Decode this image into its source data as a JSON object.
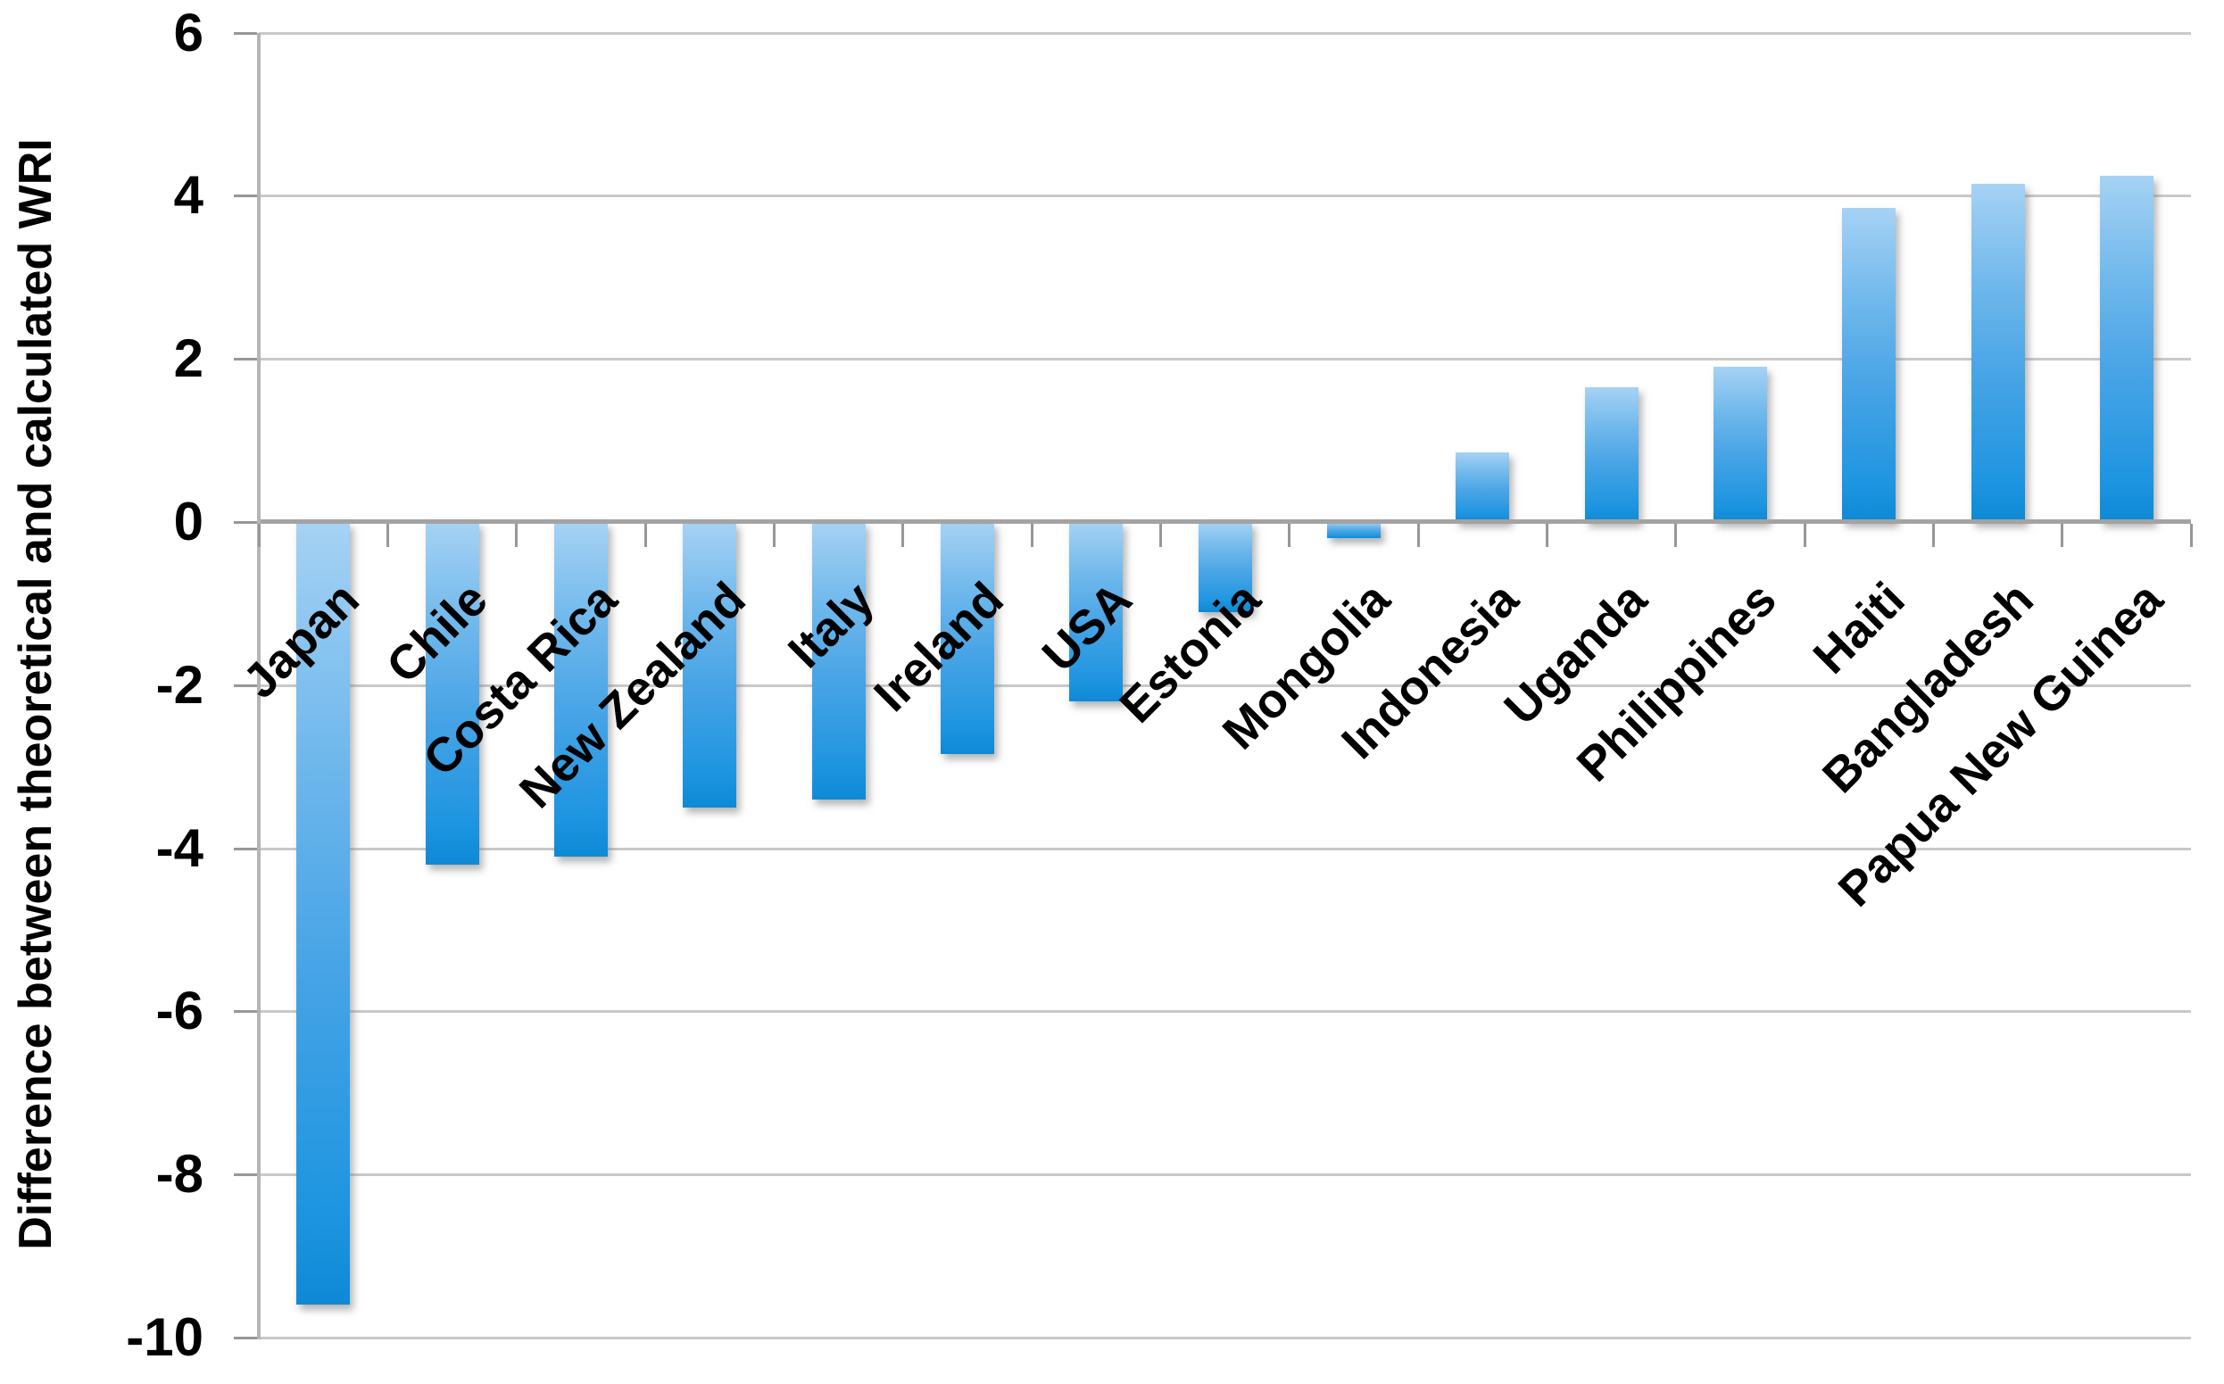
{
  "chart_data": {
    "type": "bar",
    "title": "",
    "xlabel": "",
    "ylabel": "Difference between theoretical and calculated WRI",
    "categories": [
      "Japan",
      "Chile",
      "Costa Rica",
      "New Zealand",
      "Italy",
      "Ireland",
      "USA",
      "Estonia",
      "Mongolia",
      "Indonesia",
      "Uganda",
      "Philippines",
      "Haiti",
      "Bangladesh",
      "Papua New Guinea"
    ],
    "values": [
      -9.6,
      -4.2,
      -4.1,
      -3.5,
      -3.4,
      -2.85,
      -2.2,
      -1.1,
      -0.2,
      0.85,
      1.65,
      1.9,
      3.85,
      4.15,
      4.25
    ],
    "yticks": [
      6,
      4,
      2,
      0,
      -2,
      -4,
      -6,
      -8,
      -10
    ],
    "ylim": [
      -10,
      6
    ],
    "grid": true,
    "legend": "none",
    "colors": {
      "bar_gradient_top": "#A6D2F4",
      "bar_gradient_bottom": "#0E89D6",
      "gridline": "#C9C9C9",
      "zero_line": "#A3A3A3",
      "axis_line": "#B5B5B5",
      "tick": "#979797",
      "label": "#000000",
      "background": "#FFFFFF"
    }
  }
}
